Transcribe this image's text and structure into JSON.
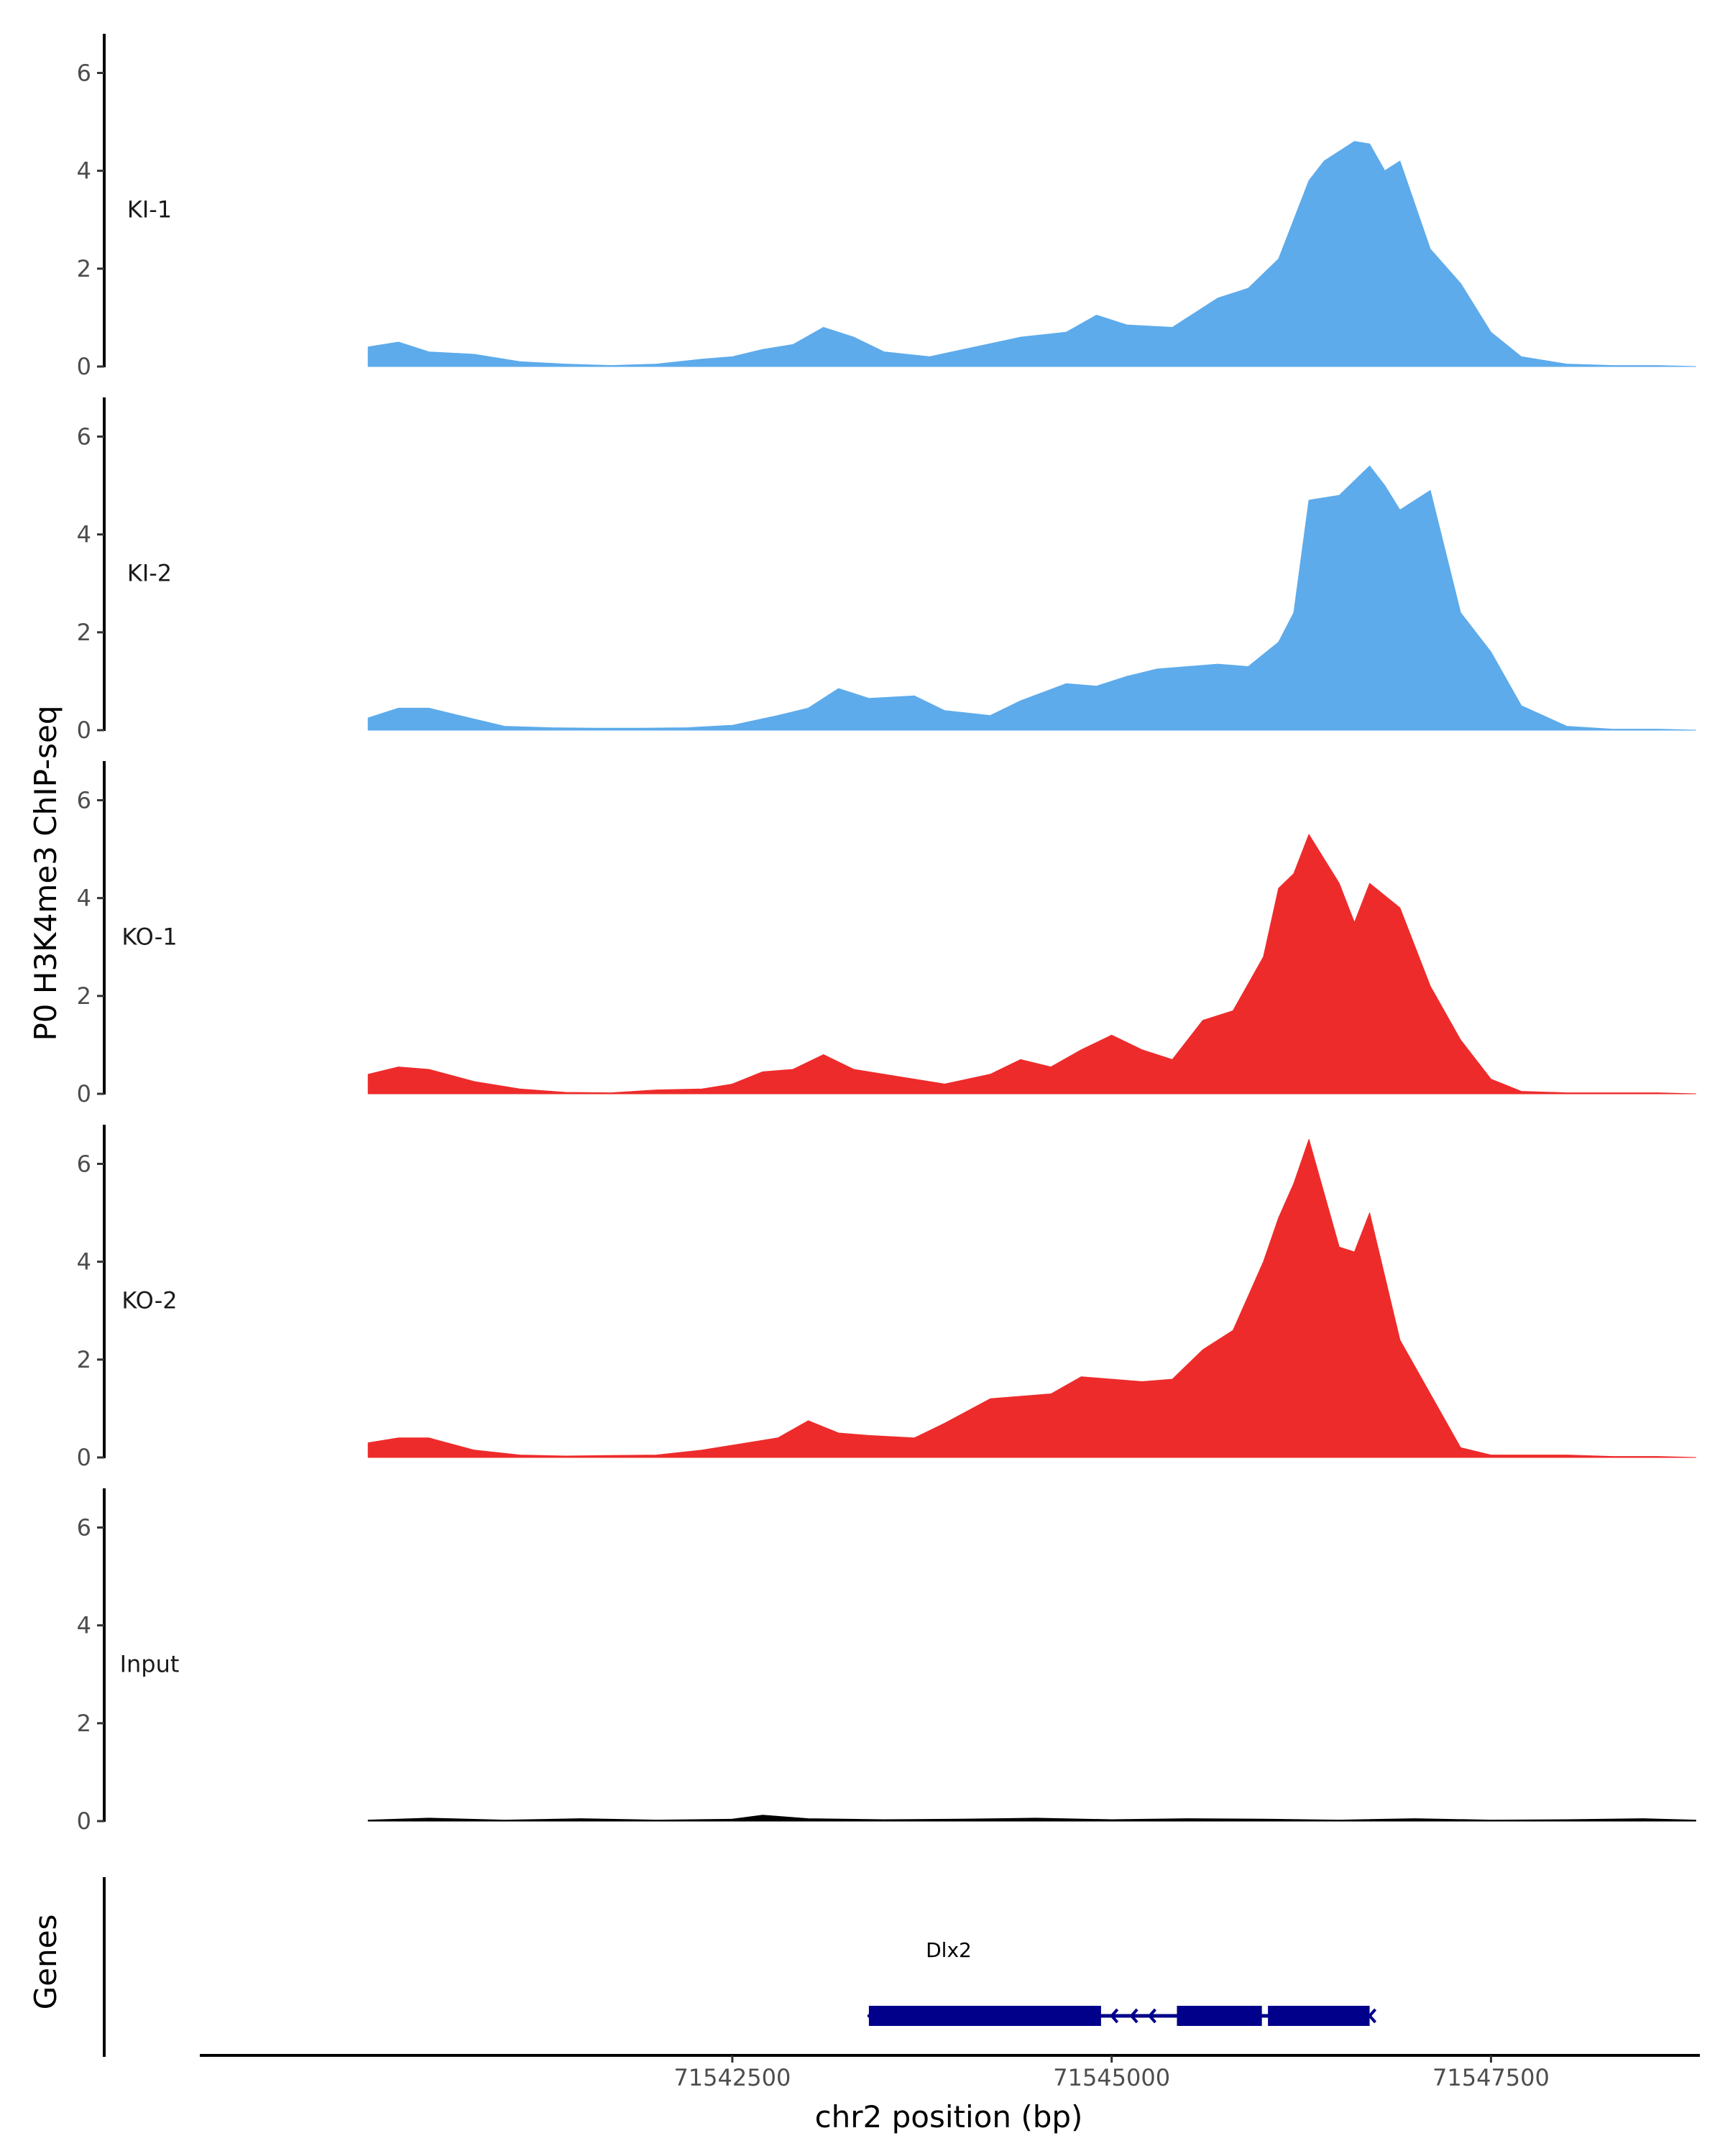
{
  "chart_data": {
    "type": "area",
    "title": "",
    "ylabel": "P0 H3K4me3 ChIP-seq",
    "xlabel": "chr2 position (bp)",
    "genes_label": "Genes",
    "xlim": [
      71539000,
      71548900
    ],
    "ylim": [
      0,
      6.8
    ],
    "y_ticks": [
      0,
      2,
      4,
      6
    ],
    "x_ticks": [
      71542500,
      71545000,
      71547500
    ],
    "colors": {
      "KI": "#5DABEB",
      "KO": "#EE2B2B",
      "Input": "#000000",
      "gene": "#00008B"
    },
    "tracks": [
      {
        "name": "KI-1",
        "color": "#5DABEB",
        "x": [
          71540100,
          71540300,
          71540500,
          71540800,
          71541100,
          71541400,
          71541700,
          71542000,
          71542300,
          71542500,
          71542700,
          71542900,
          71543100,
          71543300,
          71543500,
          71543800,
          71544100,
          71544400,
          71544700,
          71544900,
          71545100,
          71545400,
          71545700,
          71545900,
          71546100,
          71546300,
          71546400,
          71546600,
          71546700,
          71546800,
          71546900,
          71547100,
          71547300,
          71547500,
          71547700,
          71548000,
          71548300,
          71548600,
          71548850
        ],
        "y": [
          0.4,
          0.5,
          0.3,
          0.25,
          0.1,
          0.05,
          0.02,
          0.05,
          0.15,
          0.2,
          0.35,
          0.45,
          0.8,
          0.6,
          0.3,
          0.2,
          0.4,
          0.6,
          0.7,
          1.05,
          0.85,
          0.8,
          1.4,
          1.6,
          2.2,
          3.8,
          4.2,
          4.6,
          4.55,
          4.0,
          4.2,
          2.4,
          1.7,
          0.7,
          0.2,
          0.05,
          0.02,
          0.02,
          0.0
        ]
      },
      {
        "name": "KI-2",
        "color": "#5DABEB",
        "x": [
          71540100,
          71540300,
          71540500,
          71540700,
          71541000,
          71541300,
          71541600,
          71541900,
          71542200,
          71542500,
          71542800,
          71543000,
          71543200,
          71543400,
          71543700,
          71543900,
          71544200,
          71544400,
          71544700,
          71544900,
          71545100,
          71545300,
          71545500,
          71545700,
          71545900,
          71546100,
          71546200,
          71546300,
          71546500,
          71546700,
          71546800,
          71546900,
          71547100,
          71547300,
          71547500,
          71547700,
          71548000,
          71548300,
          71548600,
          71548850
        ],
        "y": [
          0.25,
          0.45,
          0.45,
          0.3,
          0.08,
          0.05,
          0.04,
          0.04,
          0.05,
          0.1,
          0.3,
          0.45,
          0.85,
          0.65,
          0.7,
          0.4,
          0.3,
          0.6,
          0.95,
          0.9,
          1.1,
          1.25,
          1.3,
          1.35,
          1.3,
          1.8,
          2.4,
          4.7,
          4.8,
          5.4,
          5.0,
          4.5,
          4.9,
          2.4,
          1.6,
          0.5,
          0.08,
          0.02,
          0.02,
          0.0
        ]
      },
      {
        "name": "KO-1",
        "color": "#EE2B2B",
        "x": [
          71540100,
          71540300,
          71540500,
          71540800,
          71541100,
          71541400,
          71541700,
          71542000,
          71542300,
          71542500,
          71542700,
          71542900,
          71543100,
          71543300,
          71543600,
          71543900,
          71544200,
          71544400,
          71544600,
          71544800,
          71545000,
          71545200,
          71545400,
          71545600,
          71545800,
          71546000,
          71546100,
          71546200,
          71546300,
          71546500,
          71546600,
          71546700,
          71546900,
          71547100,
          71547300,
          71547500,
          71547700,
          71548000,
          71548300,
          71548600,
          71548850
        ],
        "y": [
          0.4,
          0.55,
          0.5,
          0.25,
          0.1,
          0.03,
          0.02,
          0.08,
          0.1,
          0.2,
          0.45,
          0.5,
          0.8,
          0.5,
          0.35,
          0.2,
          0.4,
          0.7,
          0.55,
          0.9,
          1.2,
          0.9,
          0.7,
          1.5,
          1.7,
          2.8,
          4.2,
          4.5,
          5.3,
          4.3,
          3.5,
          4.3,
          3.8,
          2.2,
          1.1,
          0.3,
          0.05,
          0.02,
          0.02,
          0.02,
          0.0
        ]
      },
      {
        "name": "KO-2",
        "color": "#EE2B2B",
        "x": [
          71540100,
          71540300,
          71540500,
          71540800,
          71541100,
          71541400,
          71541700,
          71542000,
          71542300,
          71542500,
          71542800,
          71543000,
          71543200,
          71543400,
          71543700,
          71543900,
          71544200,
          71544400,
          71544600,
          71544800,
          71545000,
          71545200,
          71545400,
          71545600,
          71545800,
          71546000,
          71546100,
          71546200,
          71546300,
          71546500,
          71546600,
          71546700,
          71546900,
          71547100,
          71547300,
          71547500,
          71547700,
          71548000,
          71548300,
          71548600,
          71548850
        ],
        "y": [
          0.3,
          0.4,
          0.4,
          0.15,
          0.05,
          0.03,
          0.04,
          0.05,
          0.15,
          0.25,
          0.4,
          0.75,
          0.5,
          0.45,
          0.4,
          0.7,
          1.2,
          1.25,
          1.3,
          1.65,
          1.6,
          1.55,
          1.6,
          2.2,
          2.6,
          4.0,
          4.9,
          5.6,
          6.5,
          4.3,
          4.2,
          5.0,
          2.4,
          1.3,
          0.2,
          0.05,
          0.05,
          0.05,
          0.02,
          0.02,
          0.0
        ]
      },
      {
        "name": "Input",
        "color": "#000000",
        "x": [
          71540100,
          71540500,
          71541000,
          71541500,
          71542000,
          71542500,
          71542700,
          71543000,
          71543500,
          71544000,
          71544500,
          71545000,
          71545500,
          71546000,
          71546500,
          71547000,
          71547500,
          71548000,
          71548500,
          71548850
        ],
        "y": [
          0.02,
          0.06,
          0.02,
          0.05,
          0.02,
          0.04,
          0.12,
          0.05,
          0.03,
          0.04,
          0.06,
          0.03,
          0.05,
          0.04,
          0.02,
          0.05,
          0.02,
          0.03,
          0.05,
          0.02
        ]
      }
    ],
    "gene": {
      "name": "Dlx2",
      "strand": "-",
      "start": 71543400,
      "end": 71546700,
      "exons": [
        [
          71543400,
          71544930
        ],
        [
          71545430,
          71545990
        ],
        [
          71546030,
          71546700
        ]
      ]
    }
  }
}
